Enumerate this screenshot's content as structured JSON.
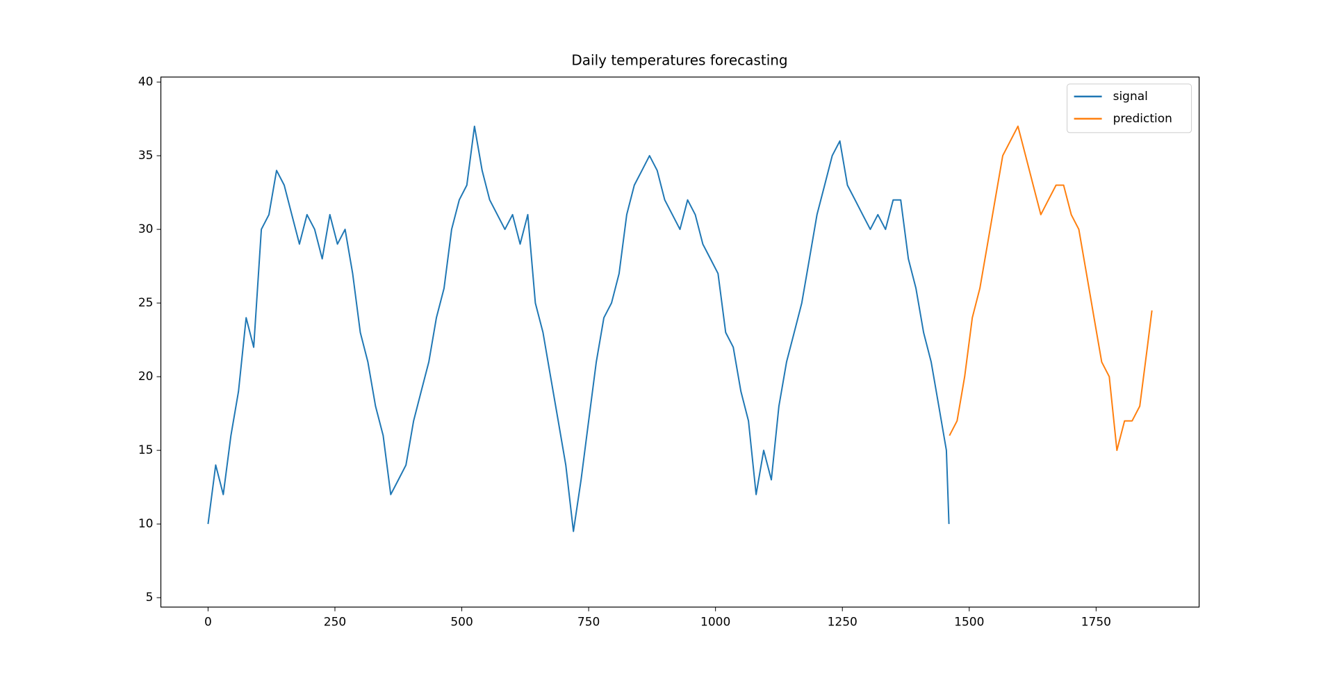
{
  "chart_data": {
    "type": "line",
    "title": "Daily temperatures forecasting",
    "xlim": [
      -93,
      1953
    ],
    "ylim": [
      4.36,
      40.34
    ],
    "xticks": [
      0,
      250,
      500,
      750,
      1000,
      1250,
      1500,
      1750
    ],
    "yticks": [
      5,
      10,
      15,
      20,
      25,
      30,
      35,
      40
    ],
    "grid": false,
    "legend": "upper right",
    "series": [
      {
        "name": "signal",
        "color": "#1f77b4",
        "x": [
          0,
          15,
          30,
          45,
          60,
          75,
          90,
          105,
          120,
          135,
          150,
          165,
          180,
          195,
          210,
          225,
          240,
          255,
          270,
          285,
          300,
          315,
          330,
          345,
          360,
          375,
          390,
          405,
          420,
          435,
          450,
          465,
          480,
          495,
          510,
          525,
          540,
          555,
          570,
          585,
          600,
          615,
          630,
          645,
          660,
          675,
          690,
          705,
          720,
          735,
          750,
          765,
          780,
          795,
          810,
          825,
          840,
          855,
          870,
          885,
          900,
          915,
          930,
          945,
          960,
          975,
          990,
          1005,
          1020,
          1035,
          1050,
          1065,
          1080,
          1095,
          1110,
          1125,
          1140,
          1155,
          1170,
          1185,
          1200,
          1215,
          1230,
          1245,
          1260,
          1275,
          1290,
          1305,
          1320,
          1335,
          1350,
          1365,
          1380,
          1395,
          1410,
          1425,
          1440,
          1455,
          1460
        ],
        "values": [
          10,
          14,
          12,
          16,
          19,
          24,
          22,
          30,
          31,
          34,
          33,
          31,
          29,
          31,
          30,
          28,
          31,
          29,
          30,
          27,
          23,
          21,
          18,
          16,
          12,
          13,
          14,
          17,
          19,
          21,
          24,
          26,
          30,
          32,
          33,
          37,
          34,
          32,
          31,
          30,
          31,
          29,
          31,
          25,
          23,
          20,
          17,
          14,
          9.5,
          13,
          17,
          21,
          24,
          25,
          27,
          31,
          33,
          34,
          35,
          34,
          32,
          31,
          30,
          32,
          31,
          29,
          28,
          27,
          23,
          22,
          19,
          17,
          12,
          15,
          13,
          18,
          21,
          23,
          25,
          28,
          31,
          33,
          35,
          36,
          33,
          32,
          31,
          30,
          31,
          30,
          32,
          32,
          28,
          26,
          23,
          21,
          18,
          15,
          10
        ]
      },
      {
        "name": "prediction",
        "color": "#ff7f0e",
        "x": [
          1461,
          1476,
          1491,
          1506,
          1521,
          1536,
          1551,
          1566,
          1581,
          1596,
          1611,
          1626,
          1641,
          1656,
          1671,
          1686,
          1701,
          1716,
          1731,
          1746,
          1761,
          1776,
          1791,
          1806,
          1821,
          1836,
          1851,
          1860
        ],
        "values": [
          16,
          17,
          20,
          24,
          26,
          29,
          32,
          35,
          36,
          37,
          35,
          33,
          31,
          32,
          33,
          33,
          31,
          30,
          27,
          24,
          21,
          20,
          15,
          17,
          17,
          18,
          22,
          24.5
        ]
      }
    ]
  }
}
